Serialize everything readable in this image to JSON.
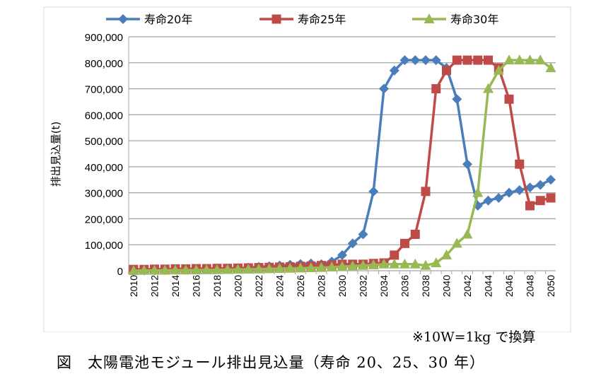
{
  "chart_data": {
    "type": "line",
    "ylabel": "排出見込量(t)",
    "xlabel": "",
    "ylim": [
      0,
      900000
    ],
    "yticks": [
      "0",
      "100,000",
      "200,000",
      "300,000",
      "400,000",
      "500,000",
      "600,000",
      "700,000",
      "800,000",
      "900,000"
    ],
    "grid": true,
    "legend": "top",
    "x": [
      2010,
      2011,
      2012,
      2013,
      2014,
      2015,
      2016,
      2017,
      2018,
      2019,
      2020,
      2021,
      2022,
      2023,
      2024,
      2025,
      2026,
      2027,
      2028,
      2029,
      2030,
      2031,
      2032,
      2033,
      2034,
      2035,
      2036,
      2037,
      2038,
      2039,
      2040,
      2041,
      2042,
      2043,
      2044,
      2045,
      2046,
      2047,
      2048,
      2049,
      2050
    ],
    "xticks": [
      "2010",
      "2012",
      "2014",
      "2016",
      "2018",
      "2020",
      "2022",
      "2024",
      "2026",
      "2028",
      "2030",
      "2032",
      "2034",
      "2036",
      "2038",
      "2040",
      "2042",
      "2044",
      "2046",
      "2048",
      "2050"
    ],
    "series": [
      {
        "name": "寿命20年",
        "color": "#4a7ebb",
        "marker": "diamond",
        "values": [
          1000,
          1500,
          2000,
          3000,
          4000,
          5000,
          6000,
          7000,
          8000,
          9000,
          10000,
          12000,
          15000,
          17000,
          20000,
          23000,
          26000,
          28000,
          25000,
          35000,
          60000,
          105000,
          140000,
          305000,
          700000,
          770000,
          810000,
          810000,
          810000,
          810000,
          780000,
          660000,
          410000,
          250000,
          270000,
          280000,
          300000,
          310000,
          320000,
          330000,
          350000
        ]
      },
      {
        "name": "寿命25年",
        "color": "#be4b48",
        "marker": "square",
        "values": [
          5000,
          5000,
          6000,
          6000,
          7000,
          7000,
          8000,
          8000,
          9000,
          9000,
          10000,
          11000,
          12000,
          13000,
          14000,
          15000,
          17000,
          18000,
          20000,
          22000,
          25000,
          25000,
          25000,
          28000,
          30000,
          60000,
          105000,
          140000,
          305000,
          700000,
          770000,
          810000,
          810000,
          810000,
          810000,
          780000,
          660000,
          410000,
          250000,
          270000,
          280000
        ]
      },
      {
        "name": "寿命30年",
        "color": "#98b954",
        "marker": "triangle",
        "values": [
          0,
          1000,
          1000,
          1500,
          2000,
          2000,
          2500,
          3000,
          3500,
          4000,
          5000,
          5500,
          6000,
          7000,
          8000,
          9000,
          10000,
          11000,
          12000,
          14000,
          16000,
          18000,
          20000,
          22000,
          25000,
          25000,
          25000,
          25000,
          20000,
          30000,
          60000,
          105000,
          140000,
          300000,
          700000,
          770000,
          810000,
          810000,
          810000,
          810000,
          780000
        ]
      }
    ]
  },
  "note": "※10W=1kg で換算",
  "caption": "図　太陽電池モジュール排出見込量（寿命 20、25、30 年）"
}
